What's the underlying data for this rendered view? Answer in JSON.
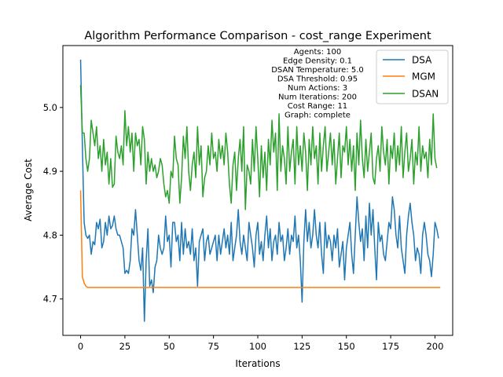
{
  "chart_data": {
    "type": "line",
    "title": "Algorithm Performance Comparison - cost_range Experiment",
    "xlabel": "Iterations",
    "ylabel": "Average Cost",
    "xlim": [
      -10,
      210
    ],
    "ylim": [
      4.643,
      5.097
    ],
    "xticks": [
      0,
      25,
      50,
      75,
      100,
      125,
      150,
      175,
      200
    ],
    "yticks": [
      4.7,
      4.8,
      4.9,
      5.0
    ],
    "xtick_labels": [
      "0",
      "25",
      "50",
      "75",
      "100",
      "125",
      "150",
      "175",
      "200"
    ],
    "ytick_labels": [
      "4.7",
      "4.8",
      "4.9",
      "5.0"
    ],
    "grid": false,
    "legend_position": "top-right",
    "annotation_lines": [
      "Agents: 100",
      "Edge Density: 0.1",
      "DSAN Temperature: 5.0",
      "DSA Threshold: 0.95",
      "Num Actions: 3",
      "Num Iterations: 200",
      "Cost Range: 11",
      "Graph: complete"
    ],
    "series": [
      {
        "name": "DSA",
        "color": "#1f77b4",
        "x_start": 0,
        "values": [
          5.075,
          4.94,
          4.82,
          4.8,
          4.795,
          4.8,
          4.77,
          4.79,
          4.785,
          4.82,
          4.81,
          4.825,
          4.78,
          4.79,
          4.82,
          4.8,
          4.83,
          4.81,
          4.815,
          4.83,
          4.81,
          4.8,
          4.8,
          4.79,
          4.78,
          4.74,
          4.745,
          4.74,
          4.76,
          4.81,
          4.8,
          4.84,
          4.8,
          4.76,
          4.745,
          4.78,
          4.665,
          4.76,
          4.81,
          4.72,
          4.73,
          4.71,
          4.75,
          4.76,
          4.8,
          4.78,
          4.77,
          4.78,
          4.83,
          4.79,
          4.8,
          4.75,
          4.82,
          4.82,
          4.79,
          4.8,
          4.76,
          4.82,
          4.77,
          4.81,
          4.78,
          4.79,
          4.77,
          4.81,
          4.76,
          4.78,
          4.72,
          4.79,
          4.8,
          4.81,
          4.76,
          4.79,
          4.8,
          4.77,
          4.78,
          4.79,
          4.8,
          4.76,
          4.8,
          4.77,
          4.79,
          4.81,
          4.78,
          4.8,
          4.77,
          4.82,
          4.76,
          4.78,
          4.8,
          4.84,
          4.79,
          4.77,
          4.8,
          4.78,
          4.76,
          4.82,
          4.8,
          4.78,
          4.75,
          4.8,
          4.82,
          4.77,
          4.79,
          4.76,
          4.8,
          4.83,
          4.78,
          4.81,
          4.76,
          4.79,
          4.8,
          4.77,
          4.82,
          4.79,
          4.8,
          4.76,
          4.78,
          4.81,
          4.77,
          4.8,
          4.79,
          4.83,
          4.78,
          4.8,
          4.76,
          4.695,
          4.79,
          4.84,
          4.79,
          4.82,
          4.78,
          4.8,
          4.84,
          4.8,
          4.78,
          4.82,
          4.77,
          4.74,
          4.82,
          4.78,
          4.8,
          4.79,
          4.76,
          4.8,
          4.78,
          4.81,
          4.75,
          4.77,
          4.79,
          4.73,
          4.78,
          4.8,
          4.82,
          4.77,
          4.74,
          4.8,
          4.86,
          4.82,
          4.79,
          4.81,
          4.76,
          4.83,
          4.78,
          4.85,
          4.8,
          4.84,
          4.78,
          4.73,
          4.82,
          4.79,
          4.8,
          4.77,
          4.76,
          4.79,
          4.82,
          4.81,
          4.86,
          4.84,
          4.8,
          4.78,
          4.83,
          4.78,
          4.76,
          4.74,
          4.8,
          4.83,
          4.85,
          4.82,
          4.8,
          4.76,
          4.78,
          4.77,
          4.74,
          4.8,
          4.82,
          4.8,
          4.77,
          4.76,
          4.735,
          4.77,
          4.82,
          4.81,
          4.795
        ]
      },
      {
        "name": "MGM",
        "color": "#ff7f0e",
        "x_start": 0,
        "values": [
          4.87,
          4.735,
          4.725,
          4.72,
          4.718,
          4.718,
          4.718,
          4.718,
          4.718,
          4.718,
          4.718,
          4.718,
          4.718,
          4.718,
          4.718,
          4.718,
          4.718,
          4.718,
          4.718,
          4.718,
          4.718,
          4.718,
          4.718,
          4.718,
          4.718,
          4.718,
          4.718,
          4.718,
          4.718,
          4.718,
          4.718,
          4.718,
          4.718,
          4.718,
          4.718,
          4.718,
          4.718,
          4.718,
          4.718,
          4.718,
          4.718,
          4.718,
          4.718,
          4.718,
          4.718,
          4.718,
          4.718,
          4.718,
          4.718,
          4.718,
          4.718,
          4.718,
          4.718,
          4.718,
          4.718,
          4.718,
          4.718,
          4.718,
          4.718,
          4.718,
          4.718,
          4.718,
          4.718,
          4.718,
          4.718,
          4.718,
          4.718,
          4.718,
          4.718,
          4.718,
          4.718,
          4.718,
          4.718,
          4.718,
          4.718,
          4.718,
          4.718,
          4.718,
          4.718,
          4.718,
          4.718,
          4.718,
          4.718,
          4.718,
          4.718,
          4.718,
          4.718,
          4.718,
          4.718,
          4.718,
          4.718,
          4.718,
          4.718,
          4.718,
          4.718,
          4.718,
          4.718,
          4.718,
          4.718,
          4.718,
          4.718,
          4.718,
          4.718,
          4.718,
          4.718,
          4.718,
          4.718,
          4.718,
          4.718,
          4.718,
          4.718,
          4.718,
          4.718,
          4.718,
          4.718,
          4.718,
          4.718,
          4.718,
          4.718,
          4.718,
          4.718,
          4.718,
          4.718,
          4.718,
          4.718,
          4.718,
          4.718,
          4.718,
          4.718,
          4.718,
          4.718,
          4.718,
          4.718,
          4.718,
          4.718,
          4.718,
          4.718,
          4.718,
          4.718,
          4.718,
          4.718,
          4.718,
          4.718,
          4.718,
          4.718,
          4.718,
          4.718,
          4.718,
          4.718,
          4.718,
          4.718,
          4.718,
          4.718,
          4.718,
          4.718,
          4.718,
          4.718,
          4.718,
          4.718,
          4.718,
          4.718,
          4.718,
          4.718,
          4.718,
          4.718,
          4.718,
          4.718,
          4.718,
          4.718,
          4.718,
          4.718,
          4.718,
          4.718,
          4.718,
          4.718,
          4.718,
          4.718,
          4.718,
          4.718,
          4.718,
          4.718,
          4.718,
          4.718,
          4.718,
          4.718,
          4.718,
          4.718,
          4.718,
          4.718,
          4.718,
          4.718,
          4.718,
          4.718,
          4.718,
          4.718,
          4.718,
          4.718,
          4.718,
          4.718,
          4.718,
          4.718,
          4.718,
          4.718,
          4.718
        ]
      },
      {
        "name": "DSAN",
        "color": "#2ca02c",
        "x_start": 0,
        "values": [
          5.035,
          4.96,
          4.96,
          4.92,
          4.9,
          4.92,
          4.98,
          4.96,
          4.94,
          4.97,
          4.92,
          4.94,
          4.9,
          4.95,
          4.91,
          4.93,
          4.88,
          4.92,
          4.875,
          4.88,
          4.955,
          4.93,
          4.92,
          4.94,
          4.91,
          4.995,
          4.94,
          4.97,
          4.93,
          4.96,
          4.9,
          4.96,
          4.94,
          4.95,
          4.91,
          4.97,
          4.95,
          4.88,
          4.93,
          4.9,
          4.92,
          4.9,
          4.91,
          4.89,
          4.9,
          4.92,
          4.91,
          4.88,
          4.86,
          4.87,
          4.85,
          4.9,
          4.89,
          4.955,
          4.92,
          4.91,
          4.85,
          4.89,
          4.955,
          4.92,
          4.97,
          4.9,
          4.87,
          4.91,
          4.93,
          4.89,
          4.97,
          4.91,
          4.94,
          4.86,
          4.89,
          4.9,
          4.94,
          4.91,
          4.96,
          4.92,
          4.93,
          4.9,
          4.95,
          4.92,
          4.94,
          4.91,
          4.96,
          4.93,
          4.88,
          4.85,
          4.91,
          4.93,
          4.87,
          4.92,
          4.95,
          4.9,
          4.97,
          4.84,
          4.91,
          4.9,
          4.88,
          4.95,
          4.9,
          4.97,
          4.92,
          4.86,
          4.94,
          4.89,
          4.93,
          4.87,
          4.95,
          4.91,
          4.98,
          4.93,
          4.96,
          4.87,
          4.99,
          4.9,
          4.94,
          4.92,
          4.88,
          4.97,
          4.9,
          4.93,
          4.95,
          4.88,
          4.97,
          4.91,
          4.94,
          4.9,
          4.96,
          4.93,
          4.87,
          4.95,
          4.91,
          4.97,
          4.92,
          4.94,
          4.88,
          4.96,
          4.9,
          4.94,
          4.97,
          4.9,
          4.93,
          4.96,
          4.91,
          4.95,
          4.88,
          4.92,
          4.96,
          4.89,
          4.94,
          4.93,
          4.97,
          4.91,
          4.95,
          4.9,
          4.94,
          4.87,
          4.96,
          4.91,
          4.98,
          4.92,
          4.89,
          4.95,
          4.9,
          4.93,
          4.96,
          4.89,
          4.88,
          4.92,
          4.94,
          4.9,
          4.97,
          4.93,
          4.91,
          4.95,
          4.88,
          4.94,
          4.92,
          4.96,
          4.9,
          4.94,
          4.91,
          4.97,
          4.89,
          4.93,
          4.96,
          4.9,
          4.92,
          4.95,
          4.88,
          4.93,
          4.91,
          4.97,
          4.9,
          4.94,
          4.92,
          4.93,
          4.89,
          4.95,
          4.91,
          4.99,
          4.92,
          4.905
        ]
      }
    ]
  }
}
